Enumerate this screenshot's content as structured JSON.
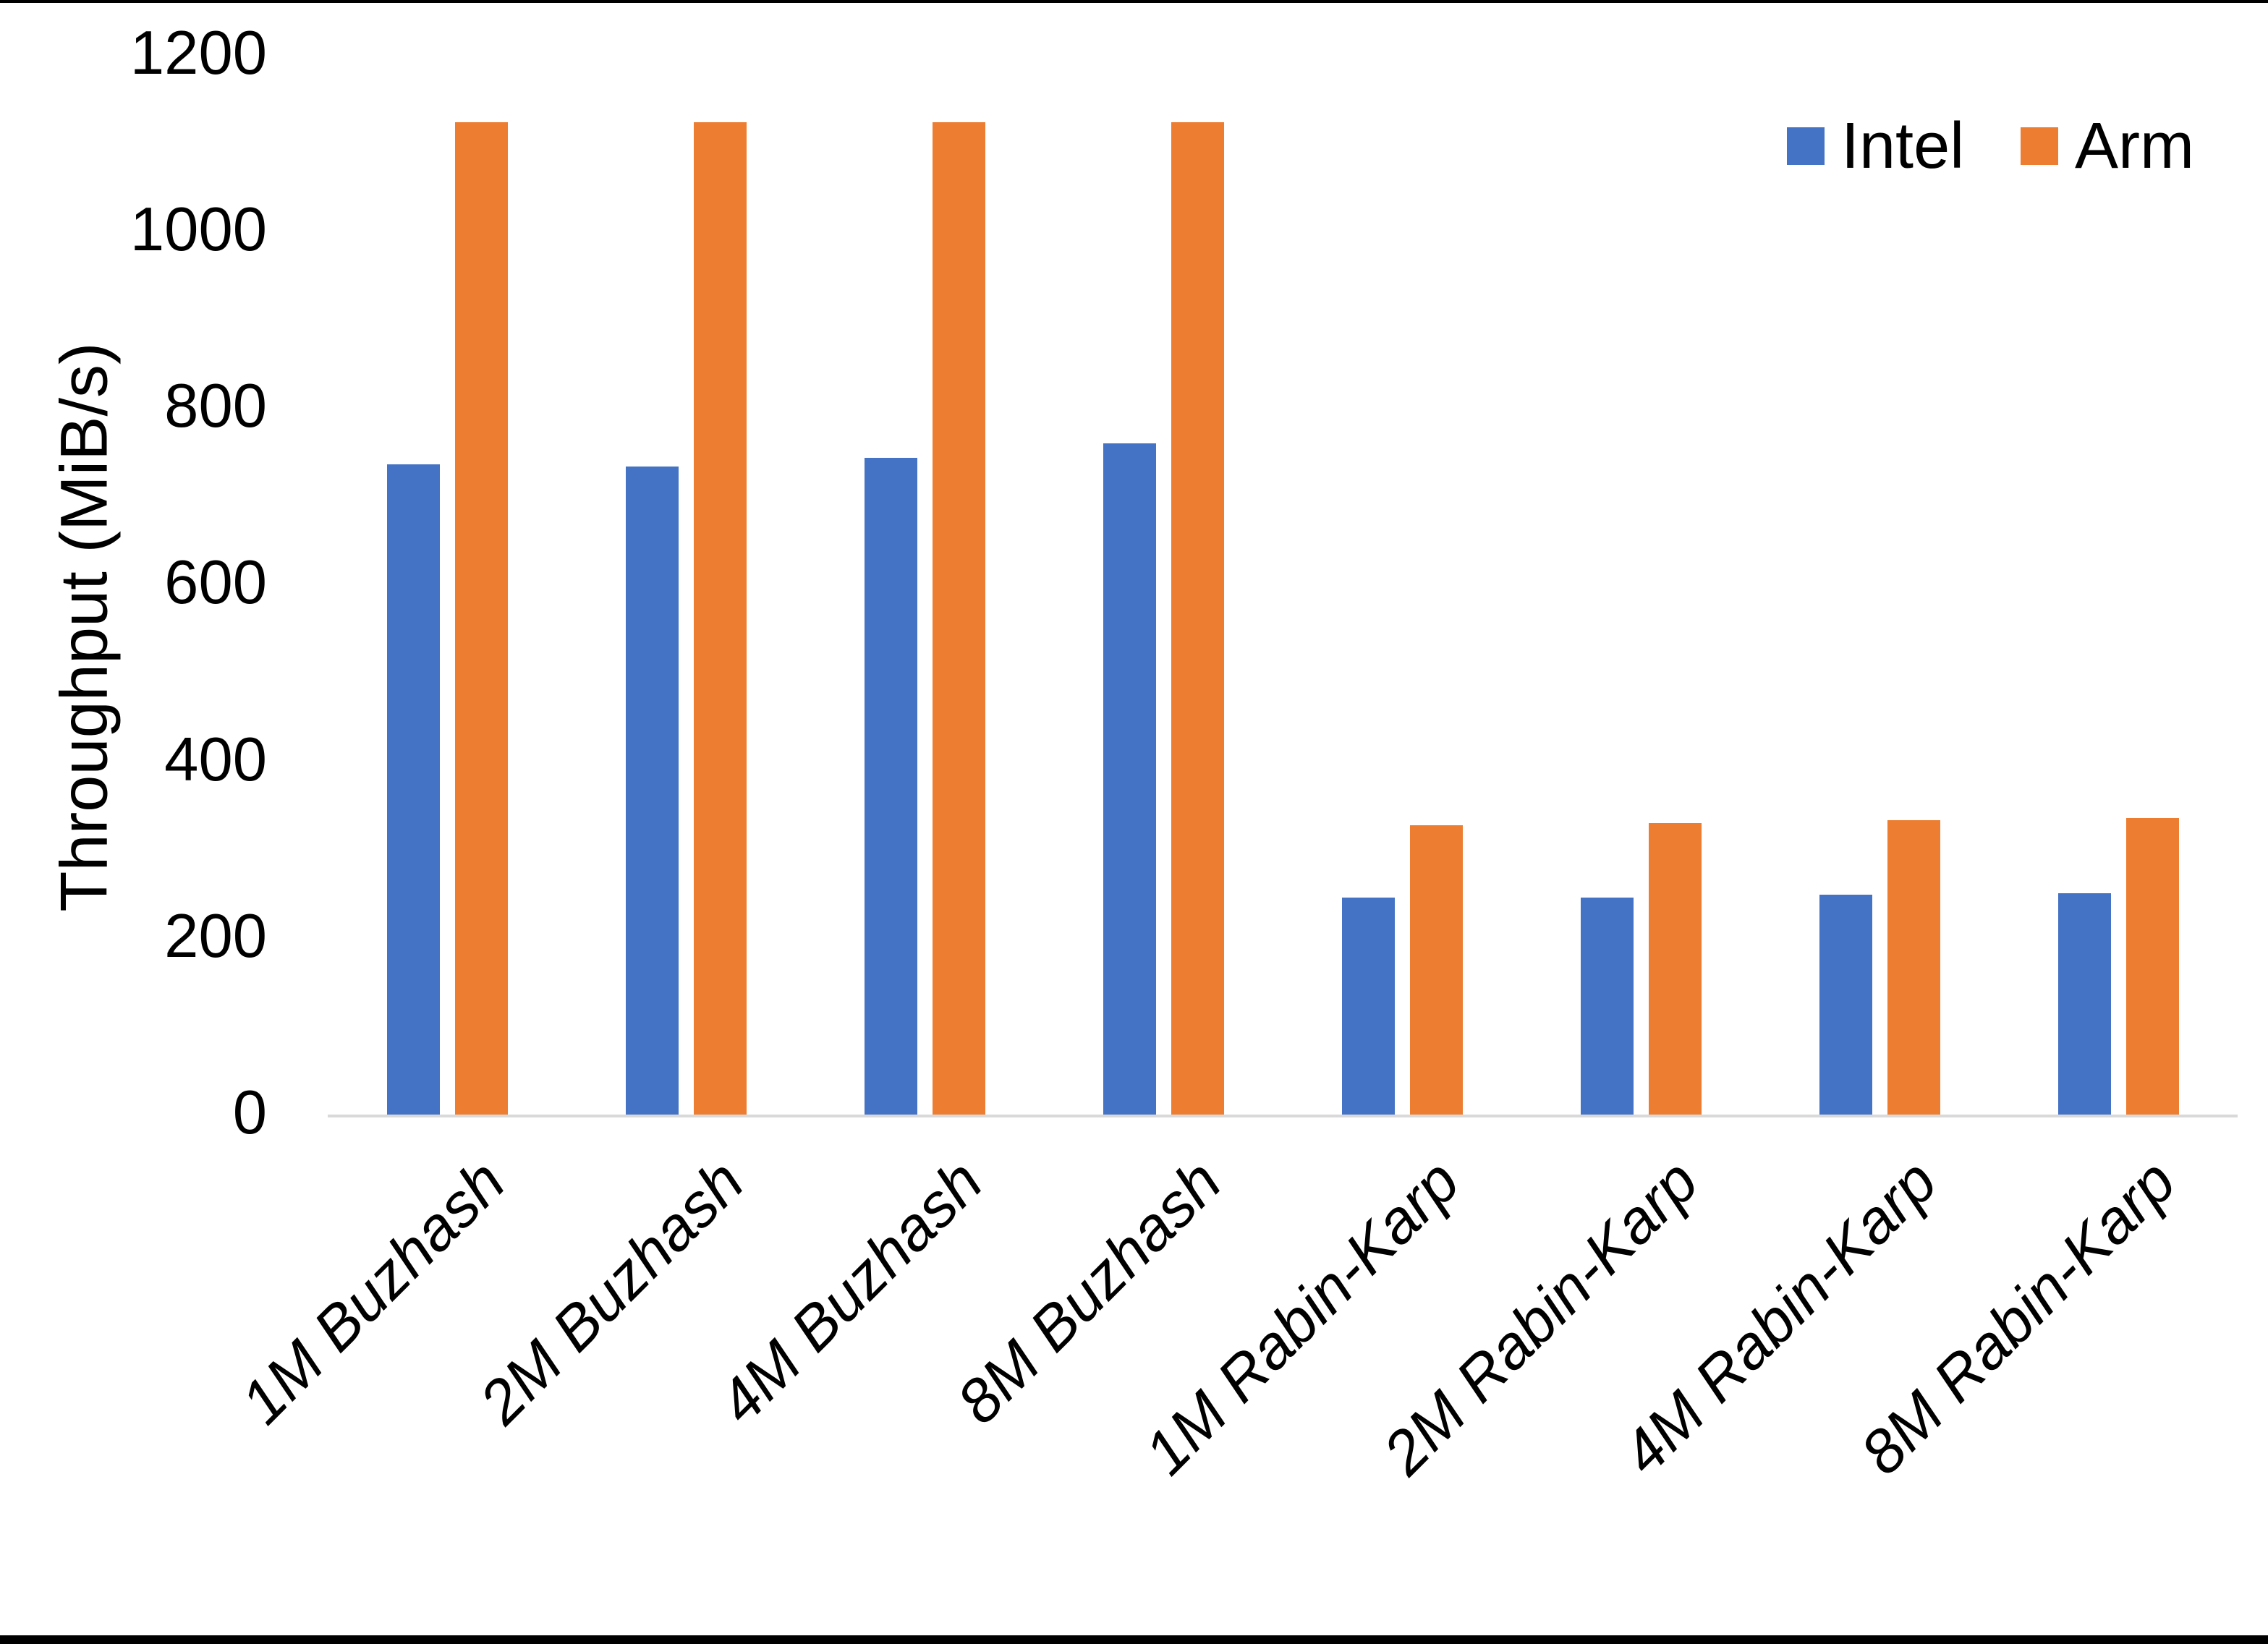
{
  "page": {
    "background": "#FFFFFF",
    "top_rule_color": "#000000",
    "bottom_rule_color": "#000000"
  },
  "chart_data": {
    "type": "bar",
    "categories": [
      "1M Buzhash",
      "2M Buzhash",
      "4M Buzhash",
      "8M Buzhash",
      "1M Rabin-Karp",
      "2M Rabin-Karp",
      "4M Rabin-Karp",
      "8M Rabin-Karp"
    ],
    "series": [
      {
        "name": "Intel",
        "color": "#4472C4",
        "values": [
          736,
          734,
          744,
          760,
          246,
          246,
          249,
          251
        ]
      },
      {
        "name": "Arm",
        "color": "#ED7D31",
        "values": [
          1124,
          1124,
          1124,
          1124,
          328,
          330,
          333,
          336
        ]
      }
    ],
    "title": "",
    "xlabel": "",
    "ylabel": "Throughput (MiB/s)",
    "ylim": [
      0,
      1200
    ],
    "yticks": [
      0,
      200,
      400,
      600,
      800,
      1000,
      1200
    ],
    "grid": false,
    "legend_position": "top-right",
    "axis_line_color": "#D9D9D9",
    "text_color": "#000000"
  }
}
